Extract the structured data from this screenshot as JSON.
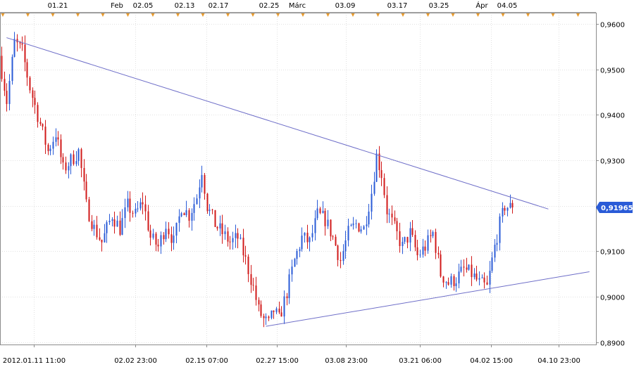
{
  "colors": {
    "up": "#2a5bd7",
    "down": "#d11a1a",
    "trendline": "#6e6ec8",
    "event_marker": "#e89a2c",
    "price_label_bg": "#2a5bd7",
    "price_label_text": "#ffffff",
    "grid": "#e1e1e1"
  },
  "top_axis": {
    "labels": [
      "01.21",
      "Feb",
      "02.05",
      "02.13",
      "02.17",
      "02.25",
      "Márc",
      "03.09",
      "03.17",
      "03.25",
      "Ápr",
      "04.05"
    ]
  },
  "chart_data": {
    "type": "candlestick",
    "y_axis": {
      "ylim": [
        0.8895,
        0.9625
      ],
      "tick_values": [
        0.96,
        0.95,
        0.94,
        0.93,
        0.92,
        0.91,
        0.9,
        0.89
      ],
      "tick_labels": [
        "0,9600",
        "0,9500",
        "0,9400",
        "0,9300",
        "0,9200",
        "0,9100",
        "0,9000",
        "0,8900"
      ]
    },
    "x_axis": {
      "tick_labels": [
        "2012.01.11 11:00",
        "02.02 23:00",
        "02.15 07:00",
        "02.27 15:00",
        "03.08 23:00",
        "03.21 06:00",
        "04.02 15:00",
        "04.10 23:00"
      ],
      "total_periods": 200
    },
    "current_price": {
      "value": 0.91965,
      "label": "0,91965"
    },
    "price_path_points": [
      [
        0,
        0.953
      ],
      [
        3,
        0.943
      ],
      [
        6,
        0.956
      ],
      [
        9,
        0.954
      ],
      [
        12,
        0.946
      ],
      [
        16,
        0.938
      ],
      [
        19,
        0.932
      ],
      [
        22,
        0.936
      ],
      [
        25,
        0.928
      ],
      [
        28,
        0.93
      ],
      [
        31,
        0.932
      ],
      [
        34,
        0.92
      ],
      [
        37,
        0.915
      ],
      [
        40,
        0.912
      ],
      [
        44,
        0.918
      ],
      [
        47,
        0.915
      ],
      [
        50,
        0.92
      ],
      [
        53,
        0.918
      ],
      [
        56,
        0.921
      ],
      [
        59,
        0.913
      ],
      [
        62,
        0.911
      ],
      [
        65,
        0.916
      ],
      [
        68,
        0.912
      ],
      [
        71,
        0.92
      ],
      [
        74,
        0.918
      ],
      [
        77,
        0.922
      ],
      [
        79,
        0.928
      ],
      [
        81,
        0.92
      ],
      [
        84,
        0.916
      ],
      [
        87,
        0.914
      ],
      [
        90,
        0.912
      ],
      [
        93,
        0.913
      ],
      [
        96,
        0.908
      ],
      [
        99,
        0.902
      ],
      [
        101,
        0.897
      ],
      [
        103,
        0.895
      ],
      [
        105,
        0.894
      ],
      [
        107,
        0.897
      ],
      [
        109,
        0.895
      ],
      [
        112,
        0.901
      ],
      [
        115,
        0.908
      ],
      [
        118,
        0.913
      ],
      [
        121,
        0.912
      ],
      [
        124,
        0.918
      ],
      [
        127,
        0.917
      ],
      [
        130,
        0.913
      ],
      [
        133,
        0.908
      ],
      [
        136,
        0.914
      ],
      [
        139,
        0.916
      ],
      [
        142,
        0.915
      ],
      [
        145,
        0.923
      ],
      [
        147,
        0.931
      ],
      [
        149,
        0.927
      ],
      [
        151,
        0.919
      ],
      [
        154,
        0.915
      ],
      [
        157,
        0.911
      ],
      [
        160,
        0.914
      ],
      [
        163,
        0.909
      ],
      [
        166,
        0.911
      ],
      [
        169,
        0.914
      ],
      [
        172,
        0.905
      ],
      [
        175,
        0.903
      ],
      [
        178,
        0.904
      ],
      [
        181,
        0.906
      ],
      [
        184,
        0.905
      ],
      [
        187,
        0.903
      ],
      [
        190,
        0.902
      ],
      [
        193,
        0.911
      ],
      [
        195,
        0.916
      ],
      [
        197,
        0.92
      ],
      [
        199,
        0.91965
      ]
    ],
    "trendlines": [
      {
        "name": "upper",
        "from": [
          2,
          0.957
        ],
        "to": [
          213,
          0.9193
        ]
      },
      {
        "name": "lower",
        "from": [
          103,
          0.8935
        ],
        "to": [
          229,
          0.9055
        ]
      }
    ],
    "event_markers": {
      "count": 24
    },
    "grid": true
  }
}
